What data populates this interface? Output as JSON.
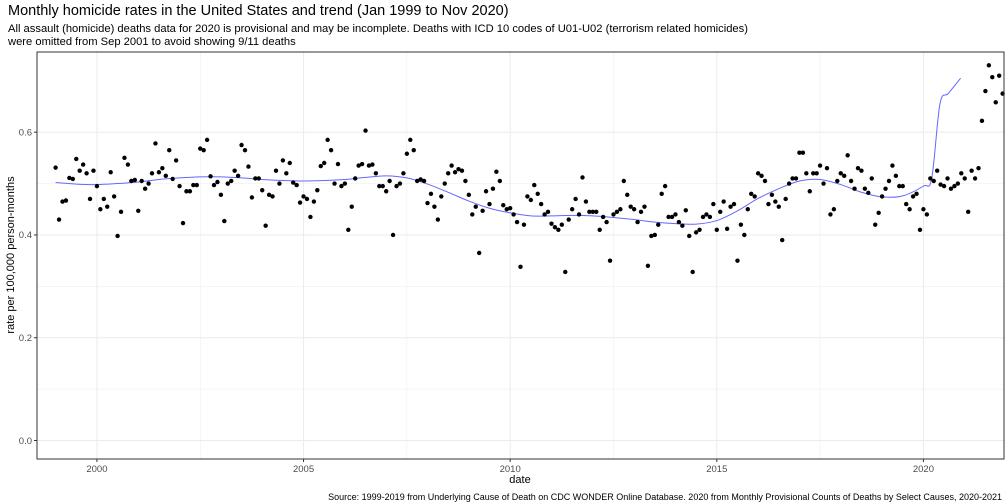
{
  "title": "Monthly homicide rates in the United States and trend (Jan 1999 to Nov 2020)",
  "subtitle_line1": "All assault (homicide) deaths data for 2020 is provisional and may be incomplete. Deaths with ICD 10 codes of U01-U02 (terrorism related homicides)",
  "subtitle_line2": "were omitted from Sep 2001 to avoid showing 9/11 deaths",
  "caption": "Source: 1999-2019 from Underlying Cause of Death on CDC WONDER Online Database. 2020 from Monthly Provisional Counts of Deaths by Select Causes, 2020-2021",
  "chart_data": {
    "type": "scatter",
    "xlabel": "date",
    "ylabel": "rate per 100,000 person-months",
    "x_ticks": [
      "2000",
      "2005",
      "2010",
      "2015",
      "2020"
    ],
    "x_tick_values": [
      2000,
      2005,
      2010,
      2015,
      2020
    ],
    "y_ticks": [
      "0.0",
      "0.2",
      "0.4",
      "0.6"
    ],
    "y_tick_values": [
      0.0,
      0.2,
      0.4,
      0.6
    ],
    "xlim": [
      1998.55,
      2021.95
    ],
    "ylim": [
      -0.036,
      0.756
    ],
    "grid": true,
    "point_color": "#000000",
    "trend_color": "#6666ff",
    "series": [
      {
        "kind": "points",
        "x_start": 1999.0,
        "x_step_months": 1,
        "y": [
          0.531,
          0.43,
          0.465,
          0.467,
          0.511,
          0.509,
          0.548,
          0.525,
          0.537,
          0.52,
          0.47,
          0.525,
          0.495,
          0.45,
          0.47,
          0.455,
          0.522,
          0.475,
          0.398,
          0.445,
          0.55,
          0.537,
          0.505,
          0.507,
          0.447,
          0.505,
          0.49,
          0.5,
          0.52,
          0.578,
          0.522,
          0.53,
          0.515,
          0.565,
          0.509,
          0.545,
          0.495,
          0.423,
          0.485,
          0.485,
          0.497,
          0.497,
          0.568,
          0.565,
          0.585,
          0.514,
          0.497,
          0.503,
          0.478,
          0.427,
          0.5,
          0.505,
          0.525,
          0.515,
          0.575,
          0.565,
          0.533,
          0.473,
          0.51,
          0.51,
          0.487,
          0.418,
          0.478,
          0.475,
          0.525,
          0.5,
          0.545,
          0.52,
          0.54,
          0.502,
          0.497,
          0.463,
          0.475,
          0.47,
          0.435,
          0.465,
          0.487,
          0.534,
          0.54,
          0.585,
          0.565,
          0.5,
          0.538,
          0.495,
          0.5,
          0.41,
          0.455,
          0.51,
          0.535,
          0.538,
          0.603,
          0.535,
          0.537,
          0.52,
          0.495,
          0.495,
          0.485,
          0.505,
          0.4,
          0.495,
          0.5,
          0.52,
          0.558,
          0.585,
          0.565,
          0.505,
          0.508,
          0.505,
          0.462,
          0.48,
          0.455,
          0.43,
          0.475,
          0.5,
          0.52,
          0.535,
          0.522,
          0.528,
          0.525,
          0.505,
          0.478,
          0.44,
          0.455,
          0.365,
          0.447,
          0.485,
          0.46,
          0.49,
          0.523,
          0.505,
          0.458,
          0.45,
          0.452,
          0.44,
          0.425,
          0.338,
          0.42,
          0.475,
          0.468,
          0.497,
          0.48,
          0.46,
          0.44,
          0.445,
          0.422,
          0.415,
          0.41,
          0.42,
          0.328,
          0.43,
          0.45,
          0.47,
          0.44,
          0.512,
          0.465,
          0.445,
          0.445,
          0.445,
          0.41,
          0.435,
          0.425,
          0.35,
          0.44,
          0.445,
          0.45,
          0.505,
          0.478,
          0.455,
          0.45,
          0.425,
          0.445,
          0.455,
          0.34,
          0.398,
          0.4,
          0.42,
          0.48,
          0.495,
          0.435,
          0.435,
          0.44,
          0.425,
          0.418,
          0.448,
          0.398,
          0.328,
          0.405,
          0.41,
          0.435,
          0.44,
          0.435,
          0.46,
          0.41,
          0.445,
          0.465,
          0.412,
          0.455,
          0.46,
          0.35,
          0.42,
          0.4,
          0.45,
          0.48,
          0.475,
          0.52,
          0.515,
          0.505,
          0.46,
          0.478,
          0.465,
          0.455,
          0.39,
          0.47,
          0.5,
          0.51,
          0.51,
          0.56,
          0.56,
          0.52,
          0.485,
          0.52,
          0.52,
          0.535,
          0.5,
          0.53,
          0.44,
          0.45,
          0.505,
          0.52,
          0.515,
          0.555,
          0.505,
          0.49,
          0.53,
          0.525,
          0.49,
          0.482,
          0.51,
          0.42,
          0.443,
          0.475,
          0.49,
          0.505,
          0.535,
          0.515,
          0.495,
          0.495,
          0.46,
          0.45,
          0.475,
          0.48,
          0.41,
          0.45,
          0.44,
          0.51,
          0.505,
          0.525,
          0.498,
          0.495,
          0.51,
          0.49,
          0.495,
          0.5,
          0.52,
          0.51,
          0.445,
          0.525,
          0.51,
          0.53,
          0.622,
          0.68,
          0.73,
          0.707,
          0.658,
          0.71,
          0.675
        ]
      },
      {
        "kind": "smooth-trend",
        "x": [
          1999.0,
          1999.5,
          2000.0,
          2000.5,
          2001.0,
          2001.5,
          2002.0,
          2002.5,
          2003.0,
          2003.5,
          2004.0,
          2004.5,
          2005.0,
          2005.5,
          2006.0,
          2006.5,
          2007.0,
          2007.5,
          2008.0,
          2008.5,
          2009.0,
          2009.5,
          2010.0,
          2010.5,
          2011.0,
          2011.5,
          2012.0,
          2012.5,
          2013.0,
          2013.5,
          2014.0,
          2014.5,
          2015.0,
          2015.5,
          2016.0,
          2016.5,
          2017.0,
          2017.5,
          2018.0,
          2018.5,
          2019.0,
          2019.5,
          2020.0,
          2020.2,
          2020.4,
          2020.6,
          2020.9
        ],
        "y": [
          0.502,
          0.499,
          0.498,
          0.5,
          0.503,
          0.508,
          0.511,
          0.513,
          0.513,
          0.511,
          0.508,
          0.506,
          0.505,
          0.506,
          0.508,
          0.512,
          0.515,
          0.511,
          0.499,
          0.483,
          0.466,
          0.452,
          0.443,
          0.437,
          0.437,
          0.438,
          0.437,
          0.434,
          0.43,
          0.425,
          0.422,
          0.421,
          0.428,
          0.447,
          0.471,
          0.49,
          0.505,
          0.508,
          0.498,
          0.483,
          0.474,
          0.476,
          0.495,
          0.51,
          0.655,
          0.675,
          0.705
        ]
      }
    ]
  }
}
